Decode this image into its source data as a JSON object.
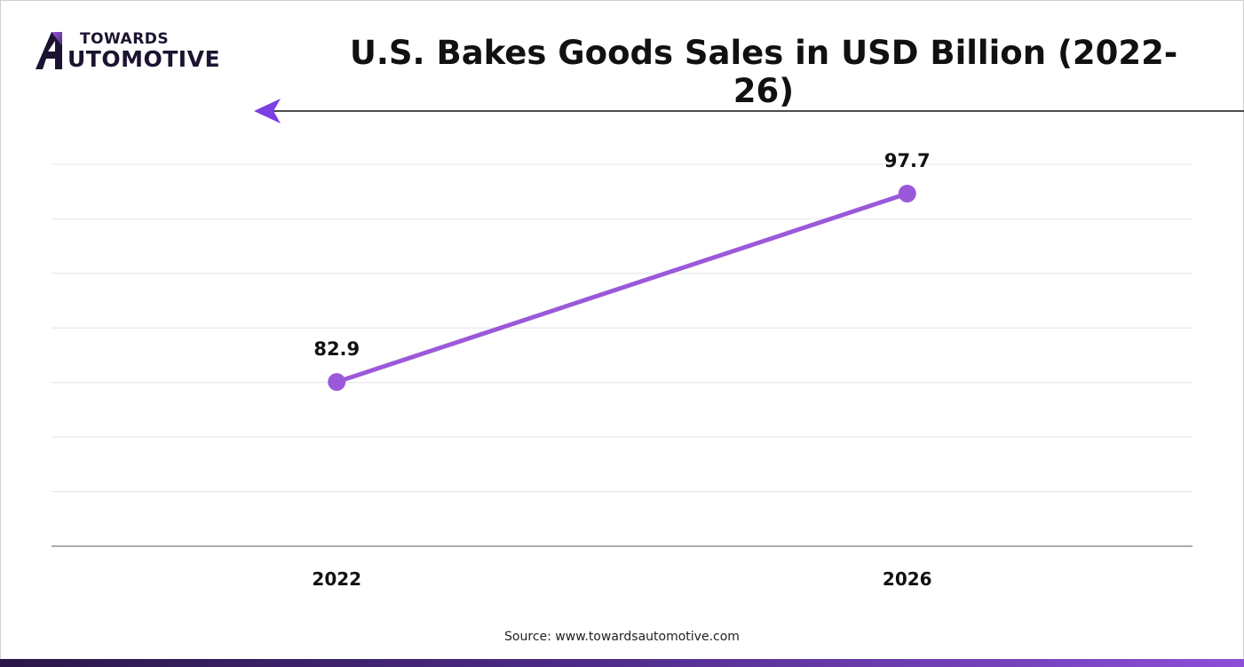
{
  "brand": {
    "line1": "TOWARDS",
    "line2": "UTOMOTIVE",
    "mark_letter": "A",
    "colors": {
      "dark": "#1c1330",
      "accent": "#7b3fe4"
    }
  },
  "title": "U.S. Bakes Goods Sales in USD Billion (2022-26)",
  "source": "Source: www.towardsautomotive.com",
  "decor": {
    "arrow_icon": "left-arrow-icon",
    "arrow_color": "#7b3fe4",
    "bottom_bar_gradient": [
      "#2a1747",
      "#4b2a86",
      "#8c4fd8"
    ]
  },
  "chart_data": {
    "type": "line",
    "categories": [
      "2022",
      "2026"
    ],
    "series": [
      {
        "values": [
          82.9,
          97.7
        ],
        "color": "#9b59d9"
      }
    ],
    "data_labels": [
      "82.9",
      "97.7"
    ],
    "title": "U.S. Bakes Goods Sales in USD Billion (2022-26)",
    "xlabel": "",
    "ylabel": "",
    "ylim": [
      70,
      100
    ],
    "grid": true,
    "legend": "none",
    "y_tick_labels_shown": false
  }
}
